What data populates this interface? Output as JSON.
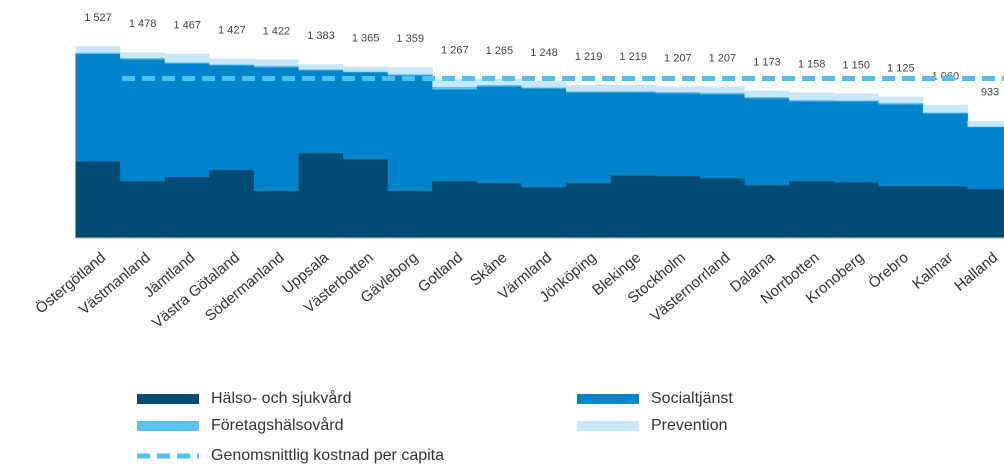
{
  "chart_data": {
    "type": "stacked_bar",
    "categories": [
      "Östergötland",
      "Västmanland",
      "Jämtland",
      "Västra Götaland",
      "Södermanland",
      "Uppsala",
      "Västerbotten",
      "Gävleborg",
      "Gotland",
      "Skåne",
      "Värmland",
      "Jönköping",
      "Blekinge",
      "Stockholm",
      "Västernorrland",
      "Dalarna",
      "Norrbotten",
      "Kronoberg",
      "Örebro",
      "Kalmar",
      "Halland"
    ],
    "series": [
      {
        "name": "Hälso- och sjukvård",
        "color": "#004b73",
        "values": [
          612,
          453,
          485,
          541,
          374,
          676,
          628,
          374,
          453,
          437,
          405,
          437,
          500,
          493,
          477,
          421,
          453,
          445,
          413,
          413,
          390
        ]
      },
      {
        "name": "Socialtjänst",
        "color": "#0084cc",
        "values": [
          855,
          970,
          906,
          835,
          986,
          660,
          692,
          922,
          731,
          771,
          787,
          723,
          660,
          660,
          668,
          692,
          636,
          644,
          652,
          580,
          493
        ]
      },
      {
        "name": "Företagshälsovård",
        "color": "#56c2f0",
        "values": [
          10,
          10,
          6,
          6,
          12,
          7,
          5,
          8,
          19,
          10,
          6,
          9,
          9,
          9,
          12,
          10,
          9,
          6,
          10,
          7,
          5
        ]
      },
      {
        "name": "Prevention",
        "color": "#c8e7fa",
        "values": [
          50,
          45,
          70,
          45,
          50,
          40,
          40,
          55,
          64,
          47,
          50,
          50,
          50,
          45,
          50,
          50,
          60,
          55,
          50,
          60,
          45
        ]
      }
    ],
    "totals": {
      "values": [
        1527,
        1478,
        1467,
        1427,
        1422,
        1383,
        1365,
        1359,
        1267,
        1265,
        1248,
        1219,
        1219,
        1207,
        1207,
        1173,
        1158,
        1150,
        1125,
        1060,
        933
      ],
      "value_labels": [
        "1 527",
        "1 478",
        "1 467",
        "1 427",
        "1 422",
        "1 383",
        "1 365",
        "1 359",
        "1 267",
        "1 265",
        "1 248",
        "1 219",
        "1 219",
        "1 207",
        "1 207",
        "1 173",
        "1 158",
        "1 150",
        "1 125",
        "1 060",
        "933"
      ]
    },
    "average": {
      "name": "Genomsnittlig kostnad per capita",
      "color": "#4dc1ef",
      "value": 1270
    },
    "ylim": [
      0,
      1600
    ]
  }
}
